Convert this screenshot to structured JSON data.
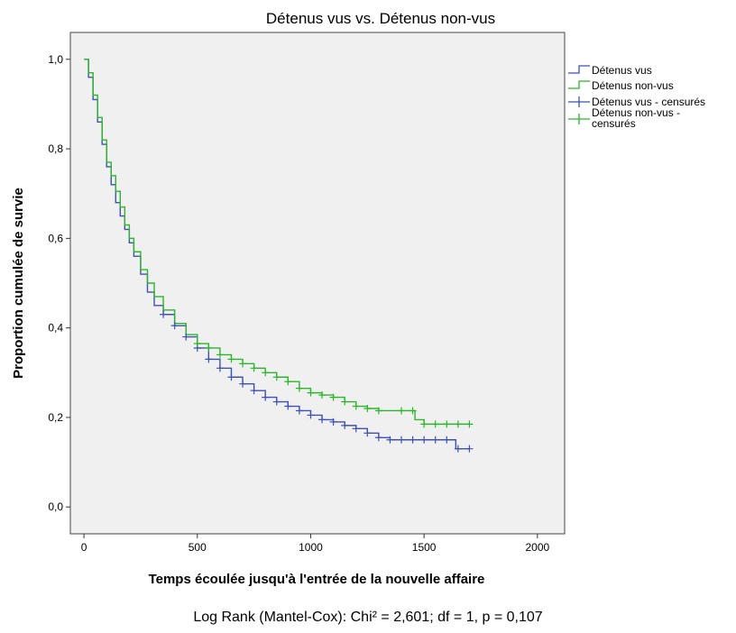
{
  "chart_data": {
    "type": "line",
    "subtype": "kaplan-meier step survival curve",
    "title": "Détenus vus vs. Détenus non-vus",
    "xlabel": "Temps écoulée jusqu'à l'entrée de la nouvelle affaire",
    "ylabel": "Proportion cumulée de survie",
    "xlim": [
      -60,
      2120
    ],
    "ylim": [
      -0.06,
      1.06
    ],
    "x_ticks": [
      0,
      500,
      1000,
      1500,
      2000
    ],
    "x_tick_labels": [
      "0",
      "500",
      "1000",
      "1500",
      "2000"
    ],
    "y_ticks": [
      0.0,
      0.2,
      0.4,
      0.6,
      0.8,
      1.0
    ],
    "y_tick_labels": [
      "0,0",
      "0,2",
      "0,4",
      "0,6",
      "0,8",
      "1,0"
    ],
    "grid": false,
    "legend_position": "right",
    "legend": [
      "Détenus vus",
      "Détenus non-vus",
      "Détenus vus - censurés",
      "Détenus non-vus - censurés"
    ],
    "series": [
      {
        "name": "Détenus vus",
        "color": "#3f51b5",
        "x": [
          0,
          20,
          40,
          60,
          80,
          100,
          120,
          140,
          160,
          180,
          200,
          220,
          250,
          280,
          310,
          350,
          400,
          450,
          500,
          550,
          600,
          650,
          700,
          750,
          800,
          850,
          900,
          950,
          1000,
          1050,
          1100,
          1150,
          1200,
          1250,
          1300,
          1350,
          1400,
          1450,
          1500,
          1550,
          1600,
          1640,
          1700
        ],
        "y": [
          1.0,
          0.96,
          0.91,
          0.86,
          0.81,
          0.76,
          0.72,
          0.68,
          0.65,
          0.62,
          0.59,
          0.56,
          0.52,
          0.48,
          0.45,
          0.43,
          0.405,
          0.38,
          0.355,
          0.33,
          0.31,
          0.29,
          0.275,
          0.26,
          0.245,
          0.235,
          0.225,
          0.215,
          0.205,
          0.195,
          0.19,
          0.182,
          0.175,
          0.165,
          0.155,
          0.15,
          0.15,
          0.15,
          0.15,
          0.15,
          0.15,
          0.13,
          0.13
        ]
      },
      {
        "name": "Détenus non-vus",
        "color": "#2db52d",
        "x": [
          0,
          20,
          40,
          60,
          80,
          100,
          120,
          140,
          160,
          180,
          200,
          220,
          250,
          280,
          310,
          350,
          400,
          450,
          500,
          550,
          600,
          650,
          700,
          750,
          800,
          850,
          900,
          950,
          1000,
          1050,
          1100,
          1150,
          1200,
          1250,
          1300,
          1350,
          1400,
          1450,
          1460,
          1500,
          1550,
          1600,
          1650,
          1700
        ],
        "y": [
          1.0,
          0.97,
          0.92,
          0.87,
          0.82,
          0.77,
          0.74,
          0.705,
          0.67,
          0.63,
          0.6,
          0.57,
          0.53,
          0.5,
          0.47,
          0.44,
          0.41,
          0.385,
          0.365,
          0.355,
          0.34,
          0.33,
          0.32,
          0.31,
          0.3,
          0.29,
          0.28,
          0.265,
          0.255,
          0.25,
          0.245,
          0.235,
          0.225,
          0.22,
          0.215,
          0.215,
          0.215,
          0.215,
          0.195,
          0.185,
          0.185,
          0.185,
          0.185,
          0.185
        ]
      }
    ],
    "censored_series": [
      {
        "name": "Détenus vus - censurés",
        "color": "#3f51b5",
        "x": [
          350,
          400,
          450,
          500,
          550,
          600,
          650,
          700,
          750,
          800,
          850,
          900,
          950,
          1000,
          1050,
          1100,
          1150,
          1200,
          1250,
          1300,
          1350,
          1400,
          1450,
          1500,
          1550,
          1600,
          1650,
          1700
        ],
        "y": [
          0.43,
          0.405,
          0.38,
          0.355,
          0.33,
          0.31,
          0.29,
          0.275,
          0.26,
          0.245,
          0.235,
          0.225,
          0.215,
          0.205,
          0.195,
          0.19,
          0.182,
          0.175,
          0.165,
          0.155,
          0.15,
          0.15,
          0.15,
          0.15,
          0.15,
          0.15,
          0.13,
          0.13
        ]
      },
      {
        "name": "Détenus non-vus - censurés",
        "color": "#2db52d",
        "x": [
          500,
          550,
          600,
          650,
          700,
          750,
          800,
          850,
          900,
          950,
          1000,
          1050,
          1100,
          1150,
          1200,
          1250,
          1300,
          1400,
          1450,
          1500,
          1550,
          1600,
          1650,
          1700
        ],
        "y": [
          0.365,
          0.355,
          0.34,
          0.33,
          0.32,
          0.31,
          0.3,
          0.29,
          0.28,
          0.265,
          0.255,
          0.25,
          0.245,
          0.235,
          0.225,
          0.22,
          0.215,
          0.215,
          0.215,
          0.185,
          0.185,
          0.185,
          0.185,
          0.185
        ]
      }
    ]
  },
  "footnote": "Log Rank (Mantel-Cox): Chi² = 2,601; df = 1, p = 0,107"
}
